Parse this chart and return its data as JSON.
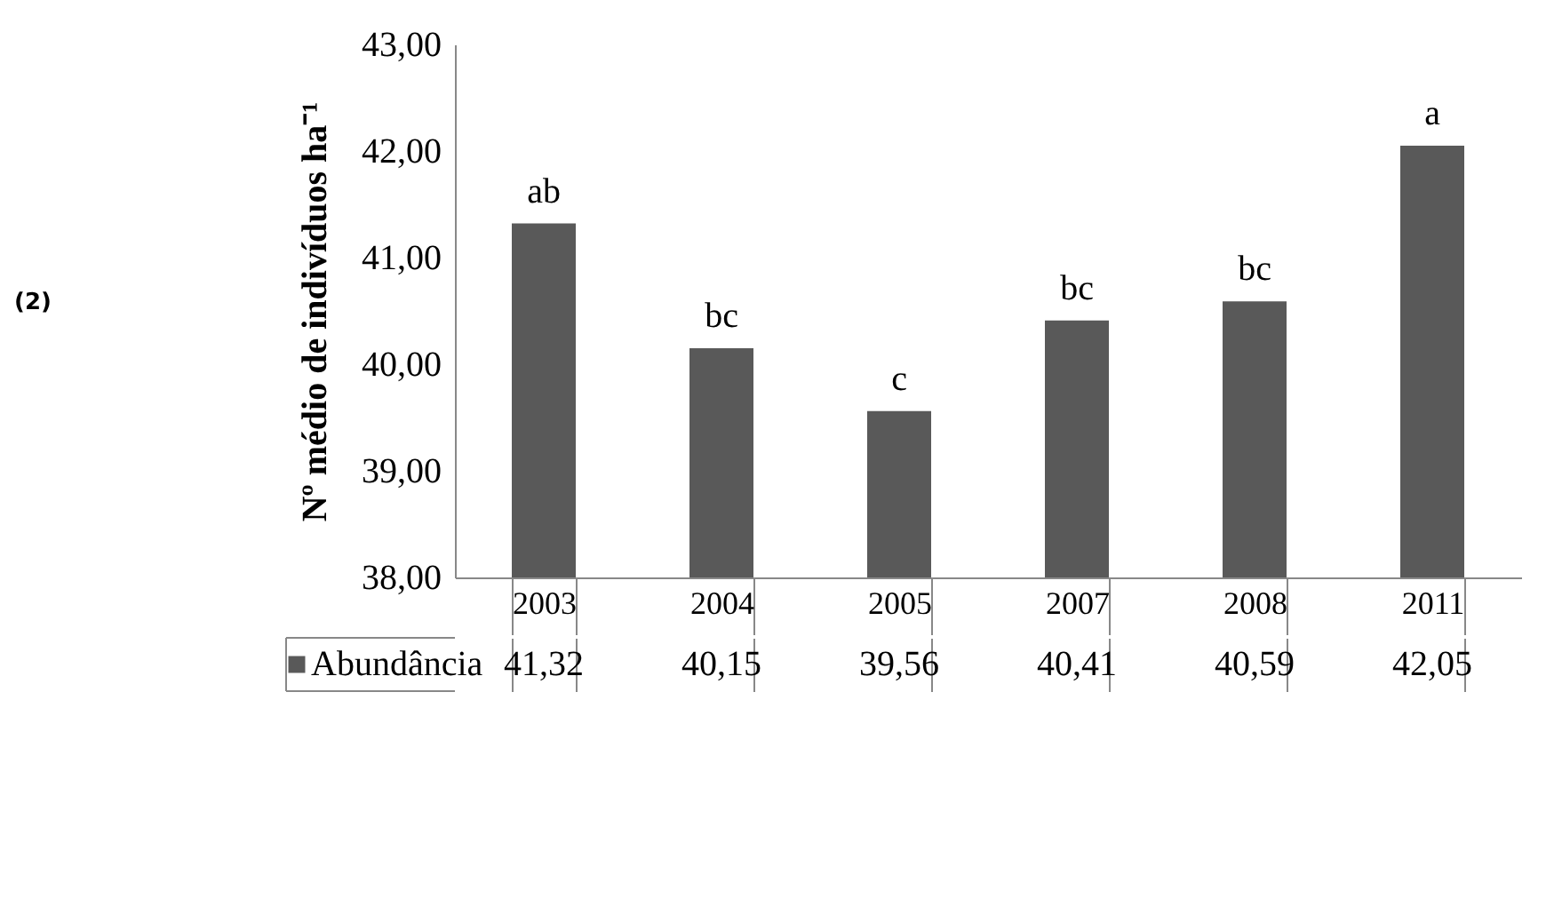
{
  "chart_data": {
    "type": "bar",
    "ylabel": "Nº médio de indivíduos ha⁻¹",
    "categories": [
      "2003",
      "2004",
      "2005",
      "2007",
      "2008",
      "2011"
    ],
    "series": [
      {
        "name": "Abundância",
        "color": "#595959",
        "values": [
          41.32,
          40.15,
          39.56,
          40.41,
          40.59,
          42.05
        ],
        "value_labels": [
          "41,32",
          "40,15",
          "39,56",
          "40,41",
          "40,59",
          "42,05"
        ]
      }
    ],
    "ylim": [
      38,
      43
    ],
    "yticks": [
      {
        "value": 38,
        "label": "38,00"
      },
      {
        "value": 39,
        "label": "39,00"
      },
      {
        "value": 40,
        "label": "40,00"
      },
      {
        "value": 41,
        "label": "41,00"
      },
      {
        "value": 42,
        "label": "42,00"
      },
      {
        "value": 43,
        "label": "43,00"
      }
    ],
    "grid": false,
    "annotations": [
      "(2)",
      {
        "text": "ab",
        "x": "2003",
        "y": 41.32
      },
      {
        "text": "bc",
        "x": "2004",
        "y": 40.15
      },
      {
        "text": "c",
        "x": "2005",
        "y": 39.56
      },
      {
        "text": "bc",
        "x": "2007",
        "y": 40.41
      },
      {
        "text": "bc",
        "x": "2008",
        "y": 40.59
      },
      {
        "text": "a",
        "x": "2011",
        "y": 42.05
      }
    ]
  }
}
